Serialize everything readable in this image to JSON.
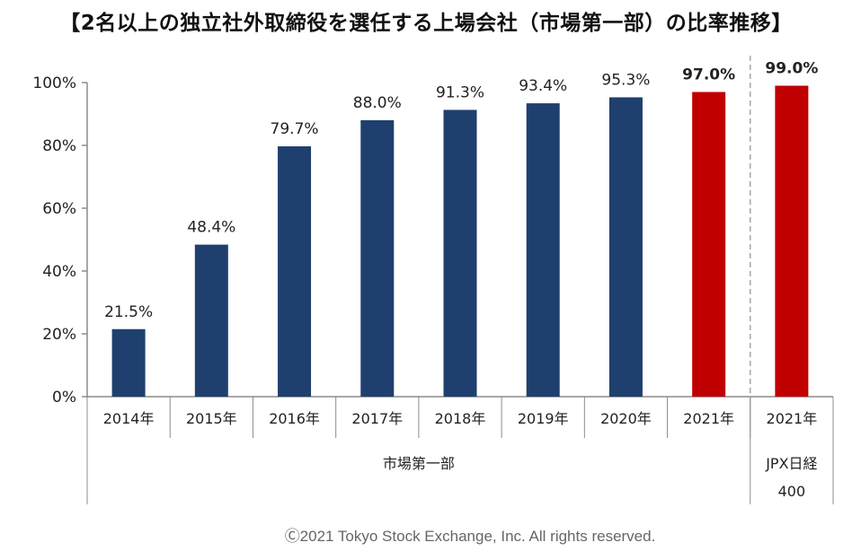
{
  "title": "【2名以上の独立社外取締役を選任する上場会社（市場第一部）の比率推移】",
  "copyright": "Ⓒ2021 Tokyo Stock Exchange, Inc. All rights reserved.",
  "colors": {
    "navy": "#1f3f6e",
    "red": "#c00000",
    "axis": "#8c8c8c",
    "divider": "#a6a6a6"
  },
  "chart_data": {
    "type": "bar",
    "ylim": [
      0,
      100
    ],
    "yticks": [
      0,
      20,
      40,
      60,
      80,
      100
    ],
    "ytick_labels": [
      "0%",
      "20%",
      "40%",
      "60%",
      "80%",
      "100%"
    ],
    "categories": [
      "2014年",
      "2015年",
      "2016年",
      "2017年",
      "2018年",
      "2019年",
      "2020年",
      "2021年",
      "2021年"
    ],
    "values": [
      21.5,
      48.4,
      79.7,
      88.0,
      91.3,
      93.4,
      95.3,
      97.0,
      99.0
    ],
    "value_labels": [
      "21.5%",
      "48.4%",
      "79.7%",
      "88.0%",
      "91.3%",
      "93.4%",
      "95.3%",
      "97.0%",
      "99.0%"
    ],
    "bar_colors": [
      "navy",
      "navy",
      "navy",
      "navy",
      "navy",
      "navy",
      "navy",
      "red",
      "red"
    ],
    "bold_labels": [
      false,
      false,
      false,
      false,
      false,
      false,
      false,
      true,
      true
    ],
    "groups": [
      {
        "label": "市場第一部",
        "count": 8
      },
      {
        "label": "JPX日経",
        "label2": "400",
        "count": 1
      }
    ],
    "grid": false,
    "legend": "none"
  }
}
